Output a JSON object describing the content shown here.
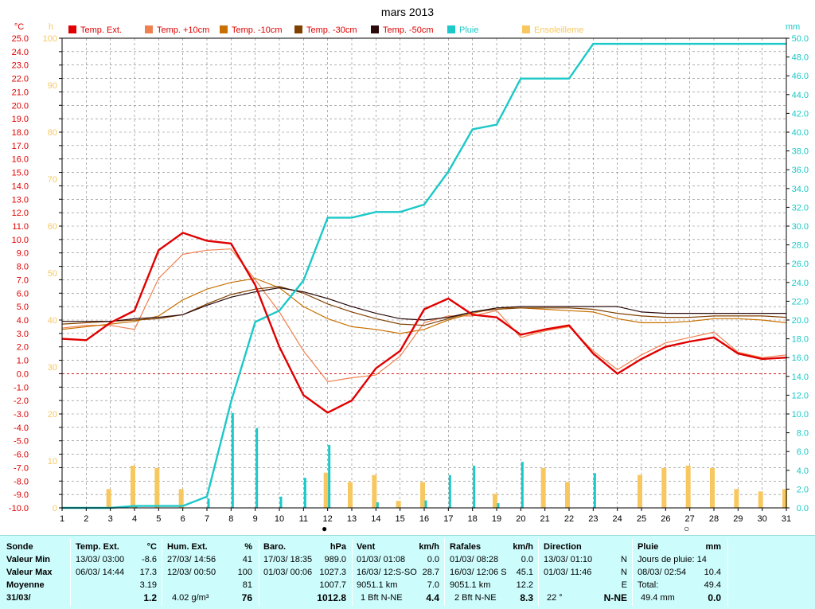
{
  "title": "mars 2013",
  "colors": {
    "temp_ext": "#e00000",
    "temp_p10": "#f08050",
    "temp_m10": "#c87000",
    "temp_m30": "#804000",
    "temp_m50": "#2a0a0a",
    "pluie": "#1cc8c8",
    "ensoleillement": "#f8c860",
    "left_axis": "#e00000",
    "hours_axis": "#f8c860",
    "right_axis": "#1cc8c8",
    "grid": "#808080",
    "stats_bg": "#cdfcfc"
  },
  "axis_units": {
    "left": "°C",
    "hours": "h",
    "right": "mm"
  },
  "chart_data": {
    "type": "line",
    "title": "mars 2013",
    "x": [
      1,
      2,
      3,
      4,
      5,
      6,
      7,
      8,
      9,
      10,
      11,
      12,
      13,
      14,
      15,
      16,
      17,
      18,
      19,
      20,
      21,
      22,
      23,
      24,
      25,
      26,
      27,
      28,
      29,
      30,
      31
    ],
    "x_ticks": [
      "1",
      "2",
      "3",
      "4",
      "5",
      "6",
      "7",
      "8",
      "9",
      "10",
      "11",
      "12",
      "13",
      "14",
      "15",
      "16",
      "17",
      "18",
      "19",
      "20",
      "21",
      "22",
      "23",
      "24",
      "25",
      "26",
      "27",
      "28",
      "29",
      "30",
      "31"
    ],
    "y_left": {
      "label": "°C",
      "min": -10,
      "max": 25,
      "ticks": [
        "25.0",
        "24.0",
        "23.0",
        "22.0",
        "21.0",
        "20.0",
        "19.0",
        "18.0",
        "17.0",
        "16.0",
        "15.0",
        "14.0",
        "13.0",
        "12.0",
        "11.0",
        "10.0",
        "9.0",
        "8.0",
        "7.0",
        "6.0",
        "5.0",
        "4.0",
        "3.0",
        "2.0",
        "1.0",
        "0.0",
        "-1.0",
        "-2.0",
        "-3.0",
        "-4.0",
        "-5.0",
        "-6.0",
        "-7.0",
        "-8.0",
        "-9.0",
        "-10.0"
      ]
    },
    "y_hours": {
      "label": "h",
      "min": 0,
      "max": 100,
      "ticks": [
        "100",
        "90",
        "80",
        "70",
        "60",
        "50",
        "40",
        "30",
        "20",
        "10",
        "0"
      ]
    },
    "y_right": {
      "label": "mm",
      "min": 0,
      "max": 50,
      "ticks": [
        "50.0",
        "48.0",
        "46.0",
        "44.0",
        "42.0",
        "40.0",
        "38.0",
        "36.0",
        "34.0",
        "32.0",
        "30.0",
        "28.0",
        "26.0",
        "24.0",
        "22.0",
        "20.0",
        "18.0",
        "16.0",
        "14.0",
        "12.0",
        "10.0",
        "8.0",
        "6.0",
        "4.0",
        "2.0",
        "0.0"
      ]
    },
    "legend": [
      "Temp. Ext.",
      "Temp. +10cm",
      "Temp. -10cm",
      "Temp. -30cm",
      "Temp. -50cm",
      "Pluie",
      "Ensoleilleme"
    ],
    "series": [
      {
        "name": "Temp. Ext.",
        "axis": "left",
        "values": [
          2.6,
          2.5,
          3.8,
          4.7,
          9.2,
          10.5,
          9.9,
          9.7,
          6.6,
          2.0,
          -1.6,
          -2.9,
          -2.0,
          0.4,
          1.7,
          4.8,
          5.6,
          4.4,
          4.2,
          2.9,
          3.3,
          3.6,
          1.5,
          0.0,
          1.1,
          2.0,
          2.4,
          2.7,
          1.5,
          1.1,
          1.2
        ]
      },
      {
        "name": "Temp. +10cm",
        "axis": "left",
        "values": [
          3.4,
          3.6,
          3.6,
          3.3,
          7.1,
          8.9,
          9.2,
          9.3,
          7.0,
          4.6,
          1.7,
          -0.6,
          -0.3,
          -0.1,
          1.3,
          3.8,
          4.3,
          4.3,
          4.7,
          2.7,
          3.2,
          3.5,
          1.7,
          0.3,
          1.4,
          2.3,
          2.7,
          3.1,
          1.6,
          1.2,
          1.4
        ]
      },
      {
        "name": "Temp. -10cm",
        "axis": "left",
        "values": [
          3.3,
          3.5,
          3.7,
          3.9,
          4.3,
          5.5,
          6.3,
          6.8,
          7.1,
          6.4,
          5.0,
          4.1,
          3.5,
          3.3,
          3.0,
          3.3,
          4.0,
          4.5,
          4.9,
          4.9,
          4.8,
          4.7,
          4.6,
          4.1,
          3.8,
          3.8,
          3.9,
          4.1,
          4.1,
          4.0,
          3.8
        ]
      },
      {
        "name": "Temp. -30cm",
        "axis": "left",
        "values": [
          3.7,
          3.8,
          3.9,
          4.0,
          4.1,
          4.4,
          5.2,
          5.9,
          6.3,
          6.5,
          6.0,
          5.2,
          4.6,
          4.1,
          3.7,
          3.6,
          4.1,
          4.6,
          4.8,
          4.9,
          4.9,
          4.9,
          4.8,
          4.5,
          4.3,
          4.2,
          4.2,
          4.3,
          4.3,
          4.3,
          4.2
        ]
      },
      {
        "name": "Temp. -50cm",
        "axis": "left",
        "values": [
          3.9,
          3.9,
          3.9,
          4.1,
          4.2,
          4.4,
          5.1,
          5.7,
          6.1,
          6.4,
          6.1,
          5.6,
          5.0,
          4.5,
          4.1,
          4.0,
          4.2,
          4.6,
          4.9,
          5.0,
          5.0,
          5.0,
          5.0,
          5.0,
          4.6,
          4.5,
          4.5,
          4.5,
          4.5,
          4.5,
          4.5
        ]
      },
      {
        "name": "Pluie",
        "axis": "right",
        "type": "cumulative",
        "values": [
          0.0,
          0.0,
          0.0,
          0.2,
          0.2,
          0.2,
          1.2,
          11.3,
          19.8,
          21.0,
          24.2,
          30.9,
          30.9,
          31.5,
          31.5,
          32.3,
          35.8,
          40.3,
          40.8,
          45.7,
          45.7,
          45.7,
          49.4,
          49.4,
          49.4,
          49.4,
          49.4,
          49.4,
          49.4,
          49.4,
          49.4
        ]
      },
      {
        "name": "Pluie",
        "axis": "right",
        "type": "daily",
        "values": [
          0,
          0,
          0,
          0.2,
          0,
          0,
          1.0,
          10.1,
          8.5,
          1.2,
          3.2,
          6.7,
          0,
          0.6,
          0,
          0.8,
          3.5,
          4.5,
          0.5,
          4.9,
          0,
          0,
          3.7,
          0,
          0,
          0,
          0,
          0,
          0,
          0,
          0
        ]
      },
      {
        "name": "Ensoleilleme",
        "axis": "hours",
        "type": "bar",
        "values": [
          0,
          0,
          4,
          9,
          8.5,
          4,
          0,
          0,
          0,
          0,
          0,
          7.5,
          5.5,
          7,
          1.5,
          5.5,
          0,
          0,
          3,
          0,
          8.5,
          5.5,
          0,
          0,
          7,
          8.5,
          9,
          8.5,
          4,
          3.5,
          4
        ]
      }
    ],
    "day_markers": [
      {
        "day": 12,
        "symbol": "●"
      },
      {
        "day": 27,
        "symbol": "○"
      }
    ],
    "grid": true
  },
  "stats": {
    "labels": {
      "row1": "Sonde",
      "row2": "Valeur Min",
      "row3": "Valeur Max",
      "row4": "Moyenne",
      "row5": "31/03/"
    },
    "temp": {
      "header": "Temp. Ext.",
      "unit": "°C",
      "min_date": "13/03/  03:00",
      "min_val": "-8.6",
      "max_date": "06/03/  14:44",
      "max_val": "17.3",
      "avg_val": "3.19",
      "today_val": "1.2"
    },
    "hum": {
      "header": "Hum. Ext.",
      "unit": "%",
      "min_date": "27/03/  14:56",
      "min_val": "41",
      "max_date": "12/03/  00:50",
      "max_val": "100",
      "avg_val": "81",
      "today_extra": "4.02 g/m³",
      "today_val": "76"
    },
    "baro": {
      "header": "Baro.",
      "unit": "hPa",
      "min_date": "17/03/  18:35",
      "min_val": "989.0",
      "max_date": "01/03/  00:06",
      "max_val": "1027.3",
      "avg_val": "1007.7",
      "today_val": "1012.8"
    },
    "vent": {
      "header": "Vent",
      "unit": "km/h",
      "min_date": "01/03/  01:08",
      "min_val": "0.0",
      "max_date": "16/03/  12:S-SO",
      "max_val": "28.7",
      "avg_extra": "9051.1 km",
      "avg_val": "7.0",
      "today_extra": "1 Bft N-NE",
      "today_val": "4.4"
    },
    "rafales": {
      "header": "Rafales",
      "unit": "km/h",
      "min_date": "01/03/  08:28",
      "min_val": "0.0",
      "max_date": "16/03/  12:06  S",
      "max_val": "45.1",
      "avg_extra": "9051.1 km",
      "avg_val": "12.2",
      "today_extra": "2 Bft N-NE",
      "today_val": "8.3"
    },
    "direction": {
      "header": "Direction",
      "min_date": "13/03/  01:10",
      "min_val": "N",
      "max_date": "01/03/  11:46",
      "max_val": "N",
      "avg_val": "E",
      "today_extra": "22 °",
      "today_val": "N-NE"
    },
    "pluie": {
      "header": "Pluie",
      "unit": "mm",
      "row2": "Jours de pluie: 14",
      "max_date": "08/03/  02:54",
      "max_val": "10.4",
      "total_label": "Total:",
      "total_val": "49.4",
      "today_extra": "49.4 mm",
      "today_val": "0.0"
    }
  }
}
